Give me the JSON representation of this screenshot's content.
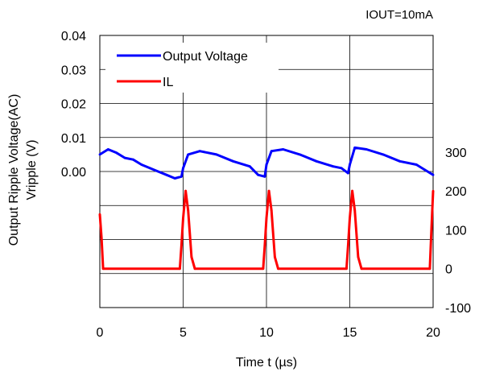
{
  "chart_data": {
    "type": "line",
    "annotation": "IOUT=10mA",
    "xlabel": "Time t (µs)",
    "ylabel_line1": "Output Ripple Voltage(AC)",
    "ylabel_line2": "Vripple (V)",
    "xlim": [
      0,
      20
    ],
    "x_ticks": [
      "0",
      "5",
      "10",
      "15",
      "20"
    ],
    "y_left_lim": [
      -0.04,
      0.04
    ],
    "y_left_ticks": [
      "0.04",
      "0.03",
      "0.02",
      "0.01",
      "0.00"
    ],
    "y_right_lim": [
      -100,
      600
    ],
    "y_right_ticks": [
      "300",
      "200",
      "100",
      "0",
      "-100"
    ],
    "grid": true,
    "legend_position": "top-left",
    "series": [
      {
        "name": "Output Voltage",
        "color": "#0000ff",
        "axis": "left",
        "x": [
          0,
          0.5,
          1,
          1.5,
          2,
          2.5,
          3,
          3.5,
          4,
          4.5,
          4.9,
          5.0,
          5.3,
          6,
          7,
          8,
          9,
          9.5,
          9.9,
          10.0,
          10.3,
          11,
          12,
          13,
          14,
          14.5,
          14.9,
          15.0,
          15.3,
          16,
          17,
          18,
          19,
          19.5,
          20
        ],
        "values": [
          0.005,
          0.0065,
          0.0055,
          0.004,
          0.0035,
          0.002,
          0.001,
          0.0,
          -0.001,
          -0.002,
          -0.0015,
          0.001,
          0.005,
          0.006,
          0.005,
          0.003,
          0.0015,
          -0.001,
          -0.0015,
          0.002,
          0.006,
          0.0065,
          0.005,
          0.003,
          0.0015,
          0.001,
          -0.0005,
          0.002,
          0.007,
          0.0065,
          0.005,
          0.003,
          0.002,
          0.0005,
          -0.001
        ]
      },
      {
        "name": "IL",
        "color": "#ff0000",
        "axis": "right",
        "x": [
          0,
          0.1,
          0.2,
          4.8,
          4.9,
          5.0,
          5.15,
          5.3,
          5.5,
          5.7,
          9.8,
          9.9,
          10.0,
          10.15,
          10.3,
          10.5,
          10.7,
          14.8,
          14.9,
          15.0,
          15.15,
          15.3,
          15.5,
          15.7,
          19.8,
          19.9,
          20.0
        ],
        "values": [
          140,
          80,
          0,
          0,
          60,
          130,
          200,
          150,
          30,
          0,
          0,
          60,
          130,
          200,
          150,
          30,
          0,
          0,
          60,
          130,
          200,
          150,
          30,
          0,
          0,
          100,
          200
        ]
      }
    ]
  }
}
